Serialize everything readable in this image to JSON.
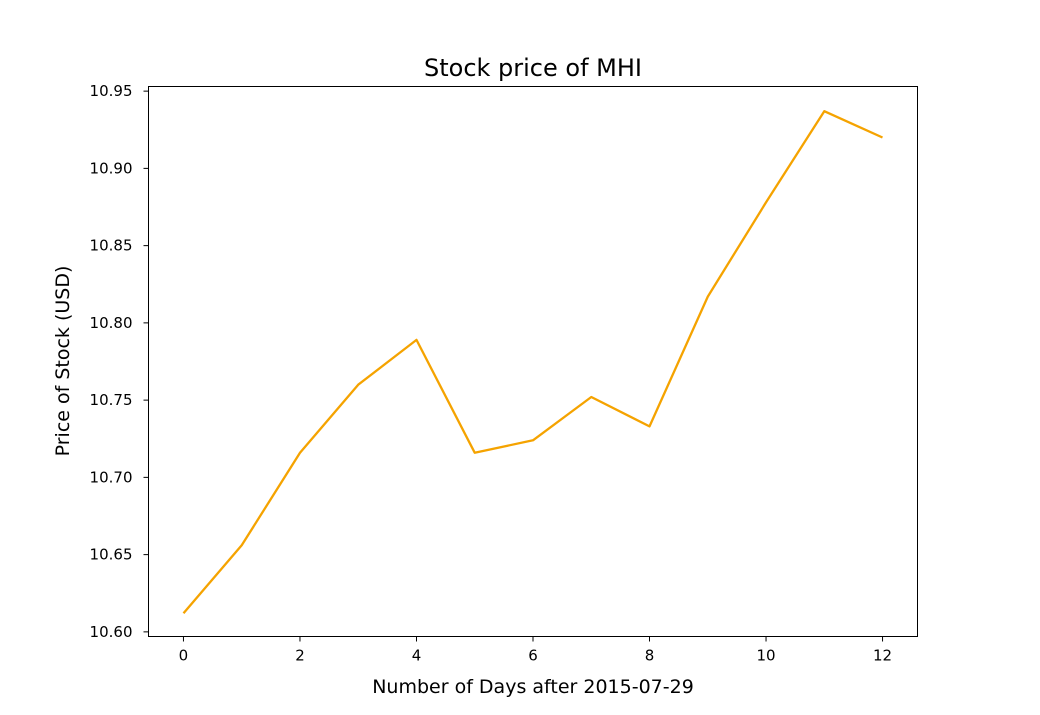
{
  "chart_data": {
    "type": "line",
    "title": "Stock price of MHI",
    "xlabel": "Number of Days after 2015-07-29",
    "ylabel": "Price of Stock (USD)",
    "x": [
      0,
      1,
      2,
      3,
      4,
      5,
      6,
      7,
      8,
      9,
      10,
      11,
      12
    ],
    "series": [
      {
        "values": [
          10.612,
          10.656,
          10.716,
          10.76,
          10.789,
          10.716,
          10.724,
          10.752,
          10.733,
          10.817,
          10.878,
          10.937,
          10.92
        ],
        "color": "#f5a300"
      }
    ],
    "xlim": [
      -0.6,
      12.6
    ],
    "ylim": [
      10.597,
      10.953
    ],
    "xticks": [
      0,
      2,
      4,
      6,
      8,
      10,
      12
    ],
    "xtick_labels": [
      "0",
      "2",
      "4",
      "6",
      "8",
      "10",
      "12"
    ],
    "yticks": [
      10.6,
      10.65,
      10.7,
      10.75,
      10.8,
      10.85,
      10.9,
      10.95
    ],
    "ytick_labels": [
      "10.60",
      "10.65",
      "10.70",
      "10.75",
      "10.80",
      "10.85",
      "10.90",
      "10.95"
    ],
    "grid": false,
    "legend": "none"
  }
}
